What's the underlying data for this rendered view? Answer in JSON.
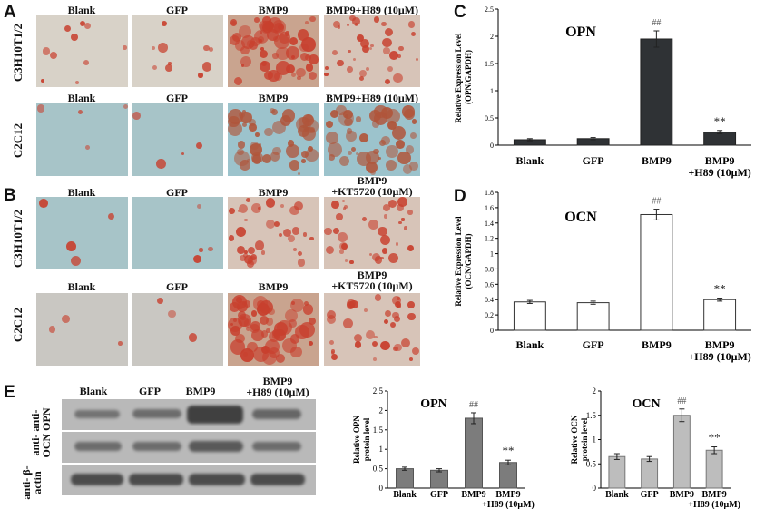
{
  "panel_letters": {
    "a": "A",
    "b": "B",
    "c": "C",
    "d": "D",
    "e": "E"
  },
  "panel_a": {
    "columns": [
      "Blank",
      "GFP",
      "BMP9",
      "BMP9+H89 (10μM)"
    ],
    "rows": [
      "C3H10T1/2",
      "C2C12"
    ]
  },
  "panel_b": {
    "columns": [
      "Blank",
      "GFP",
      "BMP9",
      "BMP9\n+KT5720 (10μM)"
    ],
    "rows": [
      "C3H10T1/2",
      "C2C12"
    ]
  },
  "panel_e": {
    "columns": [
      "Blank",
      "GFP",
      "BMP9",
      "BMP9\n+H89 (10μM)"
    ],
    "row_labels": [
      "anti- anti-\nOCN OPN",
      "anti- β-actin"
    ]
  },
  "colors": {
    "stain_red": "#c8402e",
    "bg_grey": "#d6d2cc",
    "blue_bg": "#9fc4cc",
    "dark_bar": "#2f3235",
    "grey_bar": "#7c7c7c",
    "light_bar": "#bdbdbd"
  },
  "chart_data": [
    {
      "type": "bar",
      "title": "OPN",
      "ylabel": "Relative Expression Level (OPN/GAPDH)",
      "categories": [
        "Blank",
        "GFP",
        "BMP9",
        "BMP9\n+H89 (10μM)"
      ],
      "values": [
        0.1,
        0.12,
        1.95,
        0.24
      ],
      "errors": [
        0.02,
        0.02,
        0.15,
        0.03
      ],
      "annotations": [
        "",
        "",
        "##",
        "**"
      ],
      "ylim": [
        0,
        2.5
      ],
      "yticks": [
        "0",
        "0.5",
        "1",
        "1.5",
        "2",
        "2.5"
      ]
    },
    {
      "type": "bar",
      "title": "OCN",
      "ylabel": "Relative Expression Level(OCN/GAPDH)",
      "categories": [
        "Blank",
        "GFP",
        "BMP9",
        "BMP9\n+H89 (10μM)"
      ],
      "values": [
        0.37,
        0.36,
        1.51,
        0.4
      ],
      "errors": [
        0.02,
        0.02,
        0.07,
        0.02
      ],
      "annotations": [
        "",
        "",
        "##",
        "**"
      ],
      "ylim": [
        0,
        1.8
      ],
      "yticks": [
        "0",
        "0.2",
        "0.4",
        "0.6",
        "0.8",
        "1",
        "1.2",
        "1.4",
        "1.6",
        "1.8"
      ]
    },
    {
      "type": "bar",
      "title": "OPN",
      "ylabel": "Relative OPN protein level",
      "categories": [
        "Blank",
        "GFP",
        "BMP9",
        "BMP9\n+H89 (10μM)"
      ],
      "values": [
        0.5,
        0.46,
        1.8,
        0.66
      ],
      "errors": [
        0.04,
        0.04,
        0.14,
        0.06
      ],
      "annotations": [
        "",
        "",
        "##",
        "**"
      ],
      "ylim": [
        0,
        2.5
      ],
      "yticks": [
        "0",
        "0.5",
        "1",
        "1.5",
        "2",
        "2.5"
      ]
    },
    {
      "type": "bar",
      "title": "OCN",
      "ylabel": "Relative OCN protein level",
      "categories": [
        "Blank",
        "GFP",
        "BMP9",
        "BMP9\n+H89 (10μM)"
      ],
      "values": [
        0.65,
        0.6,
        1.5,
        0.78
      ],
      "errors": [
        0.06,
        0.05,
        0.13,
        0.07
      ],
      "annotations": [
        "",
        "",
        "##",
        "**"
      ],
      "ylim": [
        0,
        2
      ],
      "yticks": [
        "0",
        "0.5",
        "1",
        "1.5",
        "2"
      ]
    }
  ]
}
